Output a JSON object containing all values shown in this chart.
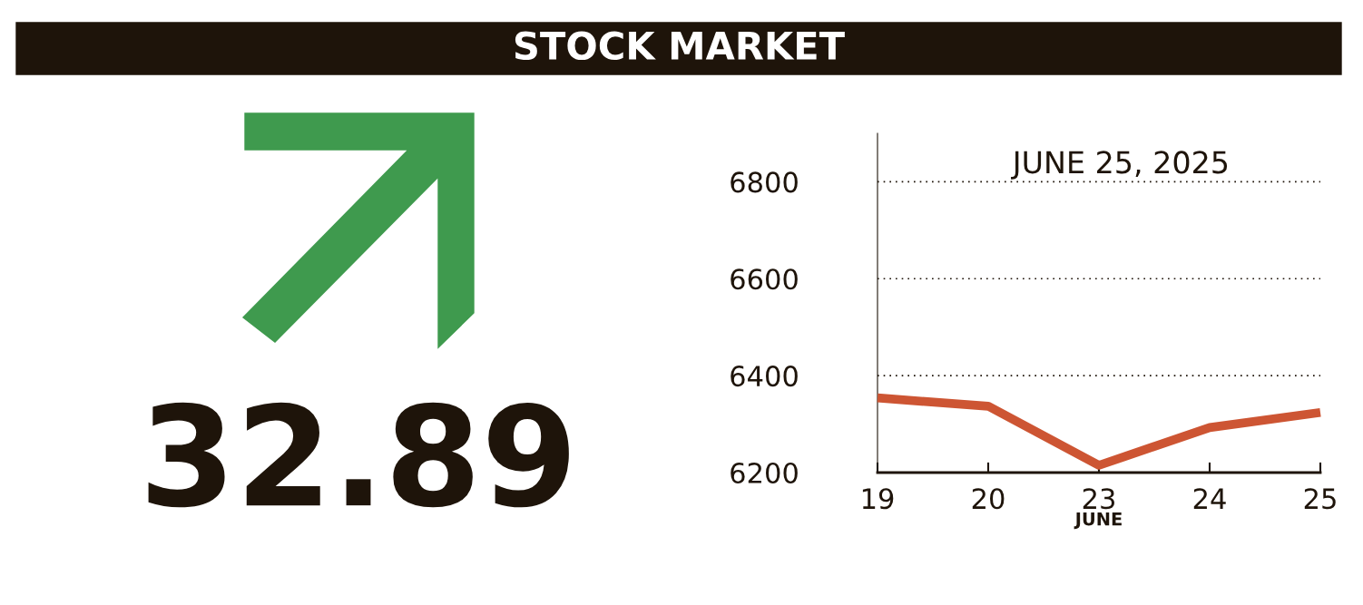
{
  "chart_data": [
    {
      "type": "other",
      "title": "STOCK MARKET",
      "annotations": [
        "32.89"
      ]
    },
    {
      "type": "line",
      "title": "JUNE 25, 2025",
      "xlabel": "JUNE",
      "categories": [
        "19",
        "20",
        "23",
        "24",
        "25"
      ],
      "series": [
        {
          "color": "#cd5533",
          "values": [
            6354,
            6337,
            6215,
            6293,
            6324
          ]
        }
      ],
      "ylim": [
        6200,
        6900
      ],
      "yticks": [
        6200,
        6400,
        6600,
        6800
      ],
      "grid": "y",
      "marker": "none",
      "line_style": "solid"
    }
  ]
}
